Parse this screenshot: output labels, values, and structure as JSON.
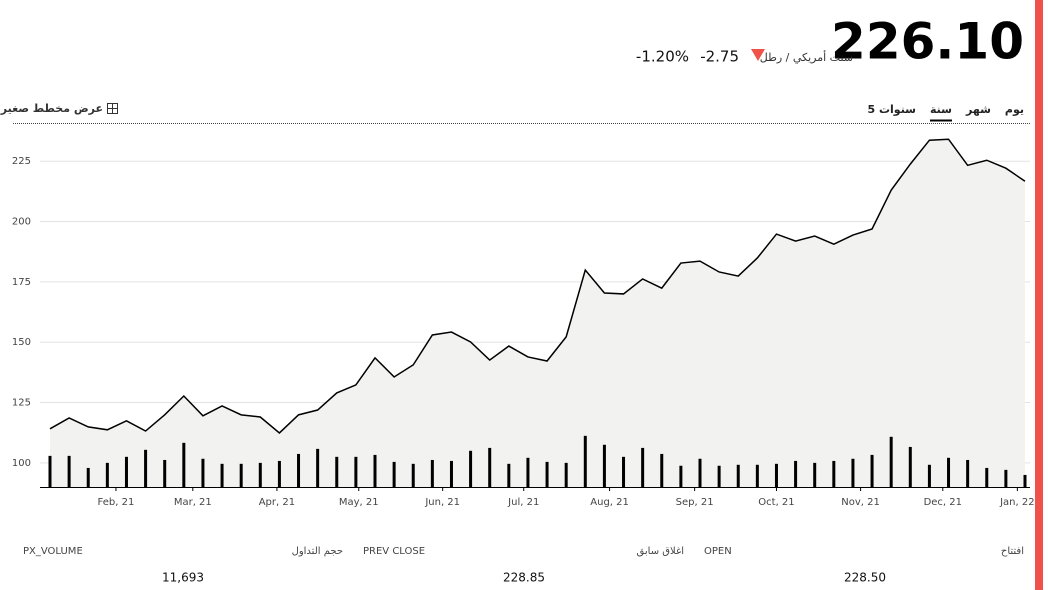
{
  "header": {
    "price": "226.10",
    "unit": "سنت أمريكي / رطل",
    "change": "-2.75",
    "change_percent": "-1.20%"
  },
  "tabs": [
    "يوم",
    "شهر",
    "سنة",
    "5 سنوات"
  ],
  "selected_tab": 2,
  "mini_chart_toggle": "عرض مخطط صغير",
  "chart_data": {
    "type": "line",
    "x": [
      0,
      1,
      2,
      3,
      4,
      5,
      6,
      7,
      8,
      9,
      10,
      11,
      12,
      13,
      14,
      15,
      16,
      17,
      18,
      19,
      20,
      21,
      22,
      23,
      24,
      25,
      26,
      27,
      28,
      29,
      30,
      31,
      32,
      33,
      34,
      35,
      36,
      37,
      38,
      39,
      40,
      41,
      42,
      43,
      44,
      45,
      46,
      47,
      48,
      49,
      50,
      51
    ],
    "series": [
      {
        "type": "area",
        "color": "#000000",
        "fill": "#f2f2f0",
        "values": [
          114.1,
          118.6,
          114.9,
          113.7,
          117.4,
          113.2,
          119.9,
          127.7,
          119.5,
          123.6,
          119.9,
          119.0,
          112.4,
          119.9,
          121.9,
          129.0,
          132.3,
          143.5,
          135.6,
          140.6,
          153.0,
          154.2,
          150.1,
          142.6,
          148.4,
          143.9,
          142.2,
          152.2,
          179.9,
          170.4,
          170.0,
          176.2,
          172.4,
          182.8,
          183.6,
          179.1,
          177.4,
          184.9,
          194.8,
          191.9,
          194.0,
          190.6,
          194.4,
          196.9,
          213.0,
          223.8,
          233.7,
          234.1,
          223.3,
          225.4,
          222.1,
          216.7
        ]
      },
      {
        "type": "bar",
        "color": "#000000",
        "values": [
          102.9,
          102.9,
          97.9,
          100.0,
          102.5,
          105.4,
          101.2,
          108.3,
          101.7,
          99.6,
          99.6,
          100.0,
          100.8,
          103.7,
          105.8,
          102.5,
          102.5,
          103.3,
          100.4,
          99.6,
          101.2,
          100.8,
          105.0,
          106.2,
          99.6,
          102.1,
          100.4,
          100.0,
          111.2,
          107.5,
          102.5,
          106.2,
          103.7,
          98.8,
          101.7,
          98.8,
          99.2,
          99.2,
          99.6,
          100.8,
          100.0,
          100.8,
          101.7,
          103.3,
          110.8,
          106.6,
          99.2,
          102.1,
          101.2,
          97.9,
          97.1,
          95.0
        ]
      }
    ],
    "xlim": [
      0,
      51
    ],
    "ylim": [
      90,
      240
    ],
    "yticks": [
      100,
      125,
      150,
      175,
      200,
      225
    ],
    "xticks": [
      {
        "value": 3.45,
        "label": "Feb, 21"
      },
      {
        "value": 7.47,
        "label": "Mar, 21"
      },
      {
        "value": 11.87,
        "label": "Apr, 21"
      },
      {
        "value": 16.15,
        "label": "May, 21"
      },
      {
        "value": 20.54,
        "label": "Jun, 21"
      },
      {
        "value": 24.78,
        "label": "Jul, 21"
      },
      {
        "value": 29.27,
        "label": "Aug, 21"
      },
      {
        "value": 33.72,
        "label": "Sep, 21"
      },
      {
        "value": 38.0,
        "label": "Oct, 21"
      },
      {
        "value": 42.4,
        "label": "Nov, 21"
      },
      {
        "value": 46.7,
        "label": "Dec, 21"
      },
      {
        "value": 50.6,
        "label": "Jan, 22"
      }
    ],
    "grid": true
  },
  "stats": [
    {
      "label": "افتتاح",
      "code": "OPEN",
      "value": "228.50"
    },
    {
      "label": "اغلاق سابق",
      "code": "PREV CLOSE",
      "value": "228.85"
    },
    {
      "label": "حجم التداول",
      "code": "PX_VOLUME",
      "value": "11,693"
    }
  ]
}
